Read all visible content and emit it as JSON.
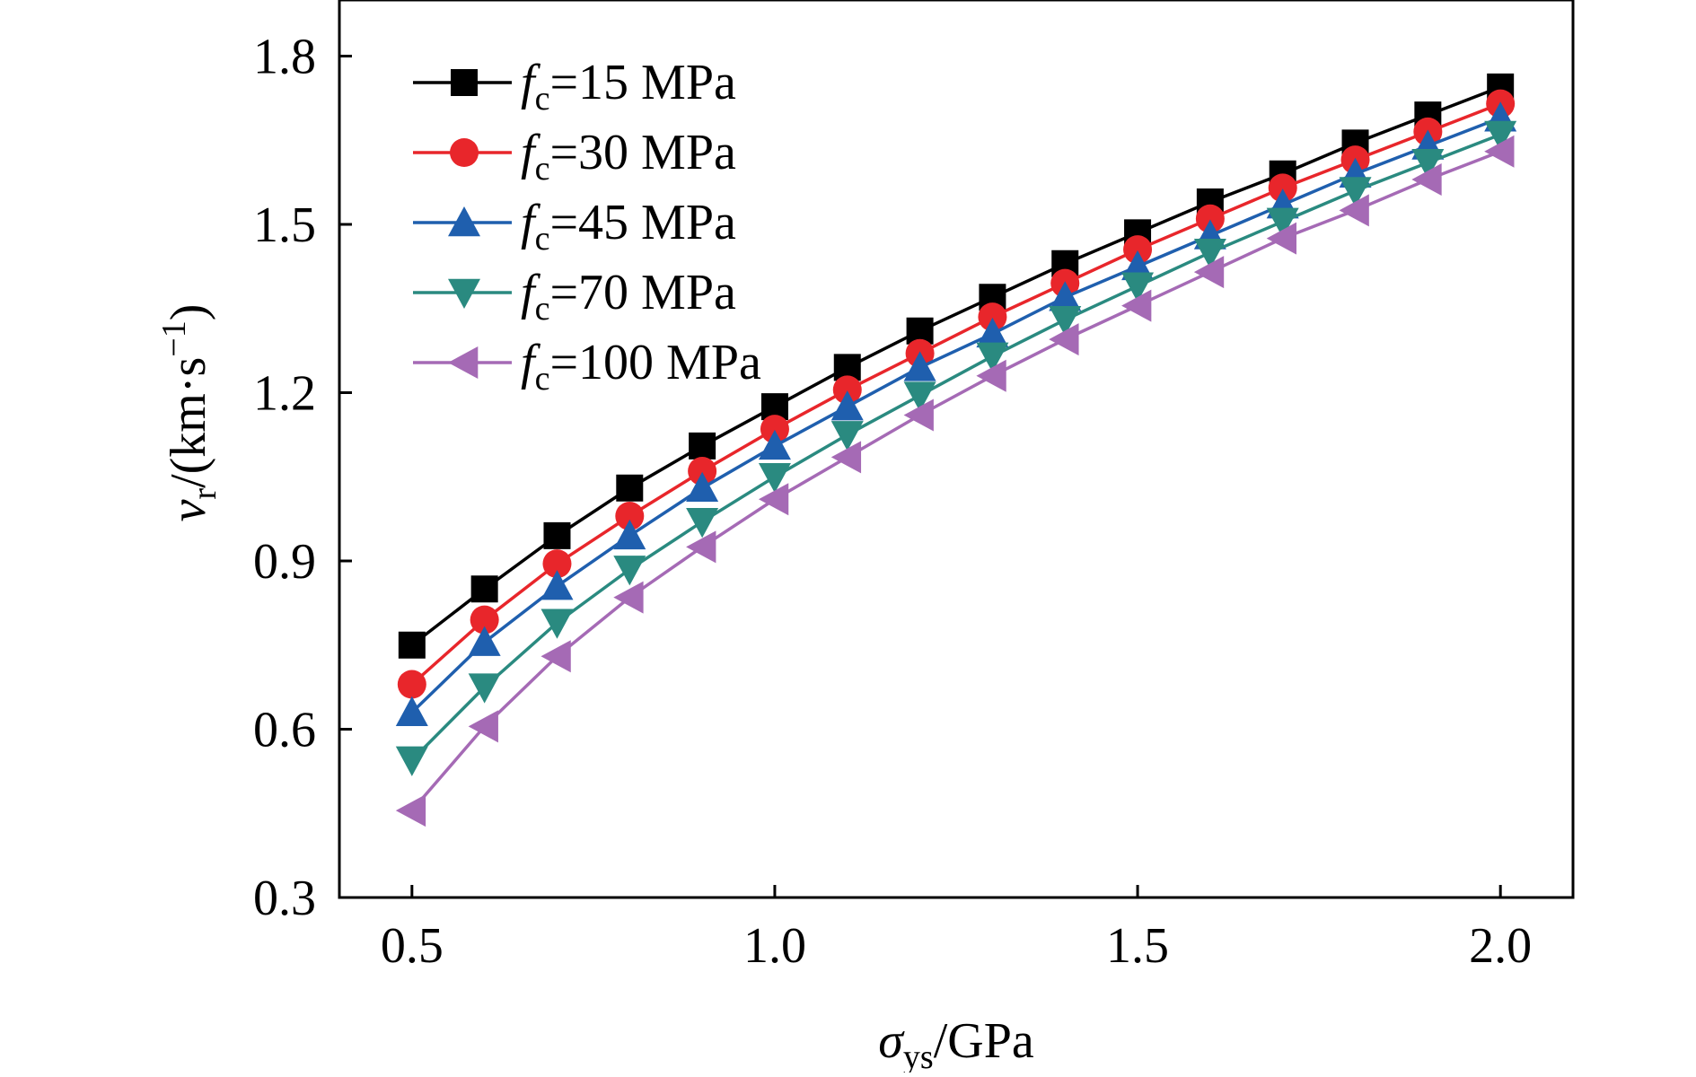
{
  "chart_data": {
    "type": "line",
    "x_label": {
      "symbol": "σ",
      "sub": "ys",
      "unit": "/GPa"
    },
    "y_label": {
      "symbol": "v",
      "sub": "r",
      "unit_main": "/(km·s",
      "unit_sup": "−1",
      "unit_close": ")"
    },
    "xlim": [
      0.4,
      2.1
    ],
    "ylim": [
      0.3,
      1.9
    ],
    "x_ticks": [
      "0.5",
      "1.0",
      "1.5",
      "2.0"
    ],
    "y_ticks": [
      "0.3",
      "0.6",
      "0.9",
      "1.2",
      "1.5",
      "1.8"
    ],
    "grid": false,
    "legend_position": "top-left",
    "x": [
      0.5,
      0.6,
      0.7,
      0.8,
      0.9,
      1.0,
      1.1,
      1.2,
      1.3,
      1.4,
      1.5,
      1.6,
      1.7,
      1.8,
      1.9,
      2.0
    ],
    "series": [
      {
        "name": "fc=15 MPa",
        "label_sym": "f",
        "label_sub": "c",
        "label_rest": "=15 MPa",
        "color": "#000000",
        "marker": "square",
        "values": [
          0.75,
          0.85,
          0.945,
          1.03,
          1.105,
          1.175,
          1.245,
          1.31,
          1.37,
          1.43,
          1.485,
          1.54,
          1.59,
          1.645,
          1.695,
          1.745
        ]
      },
      {
        "name": "fc=30 MPa",
        "label_sym": "f",
        "label_sub": "c",
        "label_rest": "=30 MPa",
        "color": "#e8262b",
        "marker": "circle",
        "values": [
          0.68,
          0.795,
          0.895,
          0.98,
          1.06,
          1.135,
          1.205,
          1.27,
          1.335,
          1.395,
          1.455,
          1.51,
          1.565,
          1.615,
          1.665,
          1.715
        ]
      },
      {
        "name": "fc=45 MPa",
        "label_sym": "f",
        "label_sub": "c",
        "label_rest": "=45 MPa",
        "color": "#1f5fae",
        "marker": "triangle-up",
        "values": [
          0.63,
          0.755,
          0.855,
          0.945,
          1.03,
          1.105,
          1.175,
          1.245,
          1.305,
          1.37,
          1.425,
          1.48,
          1.535,
          1.59,
          1.64,
          1.69
        ]
      },
      {
        "name": "fc=70 MPa",
        "label_sym": "f",
        "label_sub": "c",
        "label_rest": "=70 MPa",
        "color": "#2a8a80",
        "marker": "triangle-down",
        "values": [
          0.545,
          0.675,
          0.79,
          0.885,
          0.97,
          1.05,
          1.125,
          1.195,
          1.265,
          1.33,
          1.39,
          1.45,
          1.505,
          1.56,
          1.61,
          1.66
        ]
      },
      {
        "name": "fc=100 MPa",
        "label_sym": "f",
        "label_sub": "c",
        "label_rest": "=100 MPa",
        "color": "#a56ab5",
        "marker": "triangle-left",
        "values": [
          0.455,
          0.605,
          0.73,
          0.835,
          0.925,
          1.01,
          1.085,
          1.16,
          1.23,
          1.295,
          1.355,
          1.415,
          1.475,
          1.525,
          1.58,
          1.63
        ]
      }
    ]
  }
}
